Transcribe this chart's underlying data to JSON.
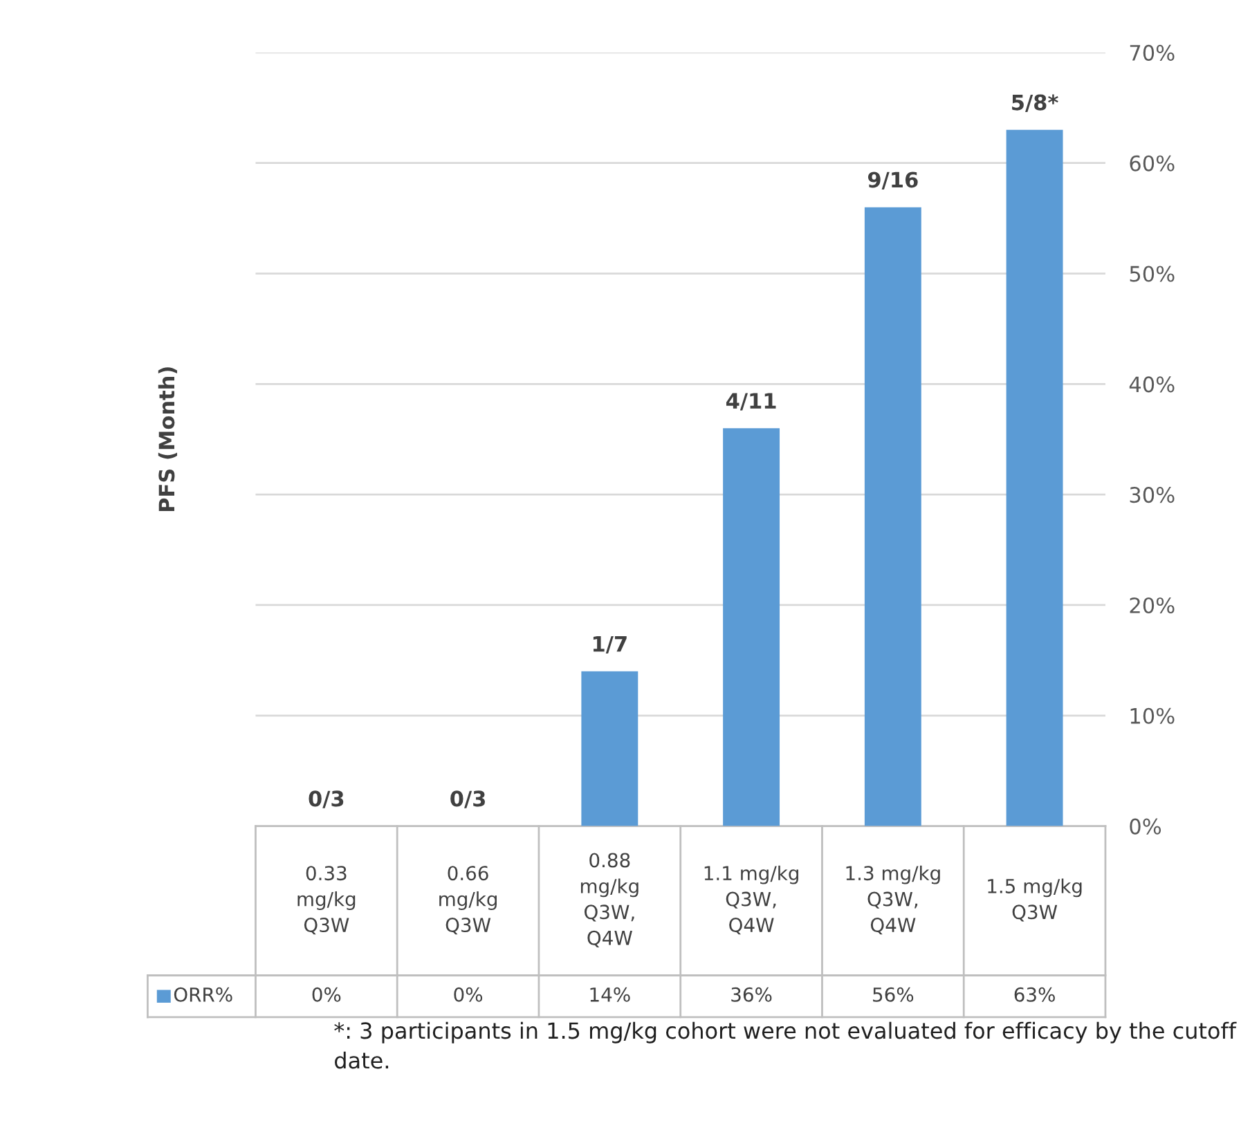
{
  "chart_data": {
    "type": "bar",
    "ylabel": "PFS (Month)",
    "categories": [
      "0.33\nmg/kg\nQ3W",
      "0.66\nmg/kg\nQ3W",
      "0.88\nmg/kg\nQ3W,\nQ4W",
      "1.1 mg/kg\nQ3W,\nQ4W",
      "1.3 mg/kg\nQ3W,\nQ4W",
      "1.5 mg/kg\nQ3W"
    ],
    "series": [
      {
        "name": "ORR%",
        "color": "#5b9bd5",
        "values": [
          0,
          0,
          14,
          36,
          56,
          63
        ],
        "value_labels": [
          "0%",
          "0%",
          "14%",
          "36%",
          "56%",
          "63%"
        ]
      }
    ],
    "ylim": [
      0,
      70
    ],
    "yticks": [
      {
        "value": 0,
        "label": "0%"
      },
      {
        "value": 10,
        "label": "10%"
      },
      {
        "value": 20,
        "label": "20%"
      },
      {
        "value": 30,
        "label": "30%"
      },
      {
        "value": 40,
        "label": "40%"
      },
      {
        "value": 50,
        "label": "50%"
      },
      {
        "value": 60,
        "label": "60%"
      },
      {
        "value": 70,
        "label": "70%"
      }
    ],
    "grid": "y",
    "annotations": [
      {
        "text": "0/3",
        "x": "0.33\nmg/kg\nQ3W",
        "y": 0
      },
      {
        "text": "0/3",
        "x": "0.66\nmg/kg\nQ3W",
        "y": 0
      },
      {
        "text": "1/7",
        "x": "0.88\nmg/kg\nQ3W,\nQ4W",
        "y": 14
      },
      {
        "text": "4/11",
        "x": "1.1 mg/kg\nQ3W,\nQ4W",
        "y": 36
      },
      {
        "text": "9/16",
        "x": "1.3 mg/kg\nQ3W,\nQ4W",
        "y": 56
      },
      {
        "text": "5/8*",
        "x": "1.5 mg/kg\nQ3W",
        "y": 63
      },
      "*: 3 participants in 1.5 mg/kg cohort were not evaluated for efficacy by the cutoff date."
    ]
  }
}
